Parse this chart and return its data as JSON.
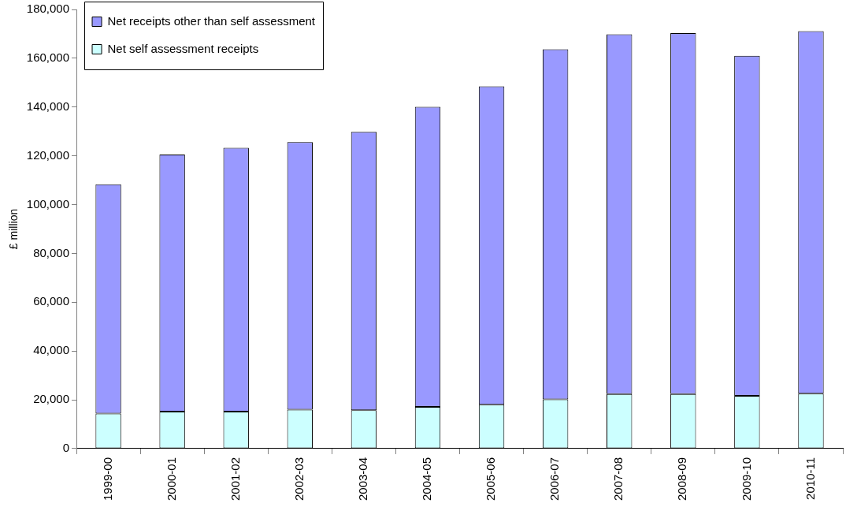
{
  "chart_data": {
    "type": "bar",
    "stacked": true,
    "ylabel": "£ million",
    "categories": [
      "1999-00",
      "2000-01",
      "2001-02",
      "2002-03",
      "2003-04",
      "2004-05",
      "2005-06",
      "2006-07",
      "2007-08",
      "2008-09",
      "2009-10",
      "2010-11"
    ],
    "series": [
      {
        "name": "Net self assessment receipts",
        "color": "#ccffff",
        "values": [
          14400,
          15200,
          15200,
          16000,
          15700,
          17100,
          18000,
          20200,
          22400,
          22400,
          21600,
          22500
        ]
      },
      {
        "name": "Net receipts other than self assessment",
        "color": "#9999ff",
        "values": [
          93900,
          105300,
          108100,
          109600,
          114100,
          123000,
          130500,
          143500,
          147400,
          147900,
          139400,
          148600
        ]
      }
    ],
    "ylim": [
      0,
      180000
    ],
    "yticks": [
      {
        "value": 0,
        "label": "0"
      },
      {
        "value": 20000,
        "label": "20,000"
      },
      {
        "value": 40000,
        "label": "40,000"
      },
      {
        "value": 60000,
        "label": "60,000"
      },
      {
        "value": 80000,
        "label": "80,000"
      },
      {
        "value": 100000,
        "label": "100,000"
      },
      {
        "value": 120000,
        "label": "120,000"
      },
      {
        "value": 140000,
        "label": "140,000"
      },
      {
        "value": 160000,
        "label": "160,000"
      },
      {
        "value": 180000,
        "label": "180,000"
      }
    ],
    "grid": false,
    "legend": "top left"
  }
}
